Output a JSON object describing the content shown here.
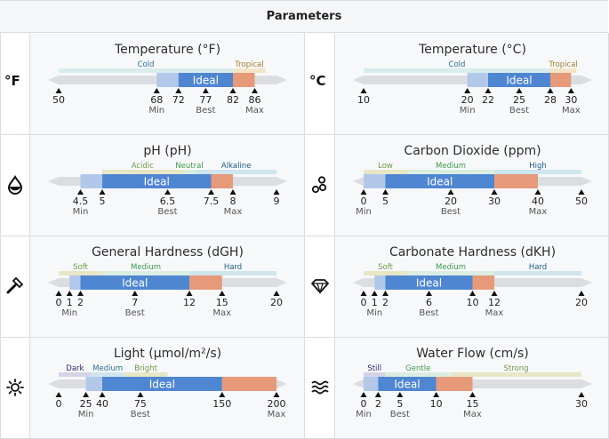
{
  "header": {
    "title": "Parameters"
  },
  "colors": {
    "ideal": "#4f86d1",
    "tolerance_low": "#b2c8ea",
    "tolerance_high": "#e69a7a",
    "track": "#dcdde0",
    "zone_a": "#d8ecec",
    "zone_b": "#e7e7c6",
    "zone_c": "#f4e4c7",
    "zone_d": "#d6d3e8",
    "zone_e": "#dbeee1",
    "zone_f": "#cfe6ee",
    "text_a": "#6f9a48",
    "text_b": "#1b5b86",
    "text_c": "#a27c2b",
    "text_d": "#2a286f",
    "text_e": "#3b9a4a",
    "text_f": "#2b6f8e"
  },
  "parameters": [
    {
      "key": "temp-f",
      "icon": "fahrenheit-icon",
      "icon_text": "°F",
      "title": "Temperature (°F)",
      "range": [
        50,
        90
      ],
      "zones": [
        {
          "label": "Cold",
          "from": 50,
          "to": 82,
          "fill": "#d8ecec",
          "text": "#2b6f8e"
        },
        {
          "label": "Tropical",
          "from": 82,
          "to": 88,
          "fill": "#f4e4c7",
          "text": "#a27c2b"
        }
      ],
      "min": 68,
      "low": 72,
      "best": 77,
      "high": 82,
      "max": 86,
      "ticks": [
        {
          "v": 50,
          "t": "50"
        },
        {
          "v": 68,
          "t": "68",
          "sub": "Min"
        },
        {
          "v": 72,
          "t": "72"
        },
        {
          "v": 77,
          "t": "77",
          "sub": "Best"
        },
        {
          "v": 82,
          "t": "82"
        },
        {
          "v": 86,
          "t": "86",
          "sub": "Max"
        }
      ],
      "ideal_label": "Ideal"
    },
    {
      "key": "temp-c",
      "icon": "celsius-icon",
      "icon_text": "°C",
      "title": "Temperature (°C)",
      "range": [
        10,
        31
      ],
      "zones": [
        {
          "label": "Cold",
          "from": 10,
          "to": 28,
          "fill": "#d8ecec",
          "text": "#2b6f8e"
        },
        {
          "label": "Tropical",
          "from": 28,
          "to": 30.5,
          "fill": "#f4e4c7",
          "text": "#a27c2b"
        }
      ],
      "min": 20,
      "low": 22,
      "best": 25,
      "high": 28,
      "max": 30,
      "ticks": [
        {
          "v": 10,
          "t": "10"
        },
        {
          "v": 20,
          "t": "20",
          "sub": "Min"
        },
        {
          "v": 22,
          "t": "22"
        },
        {
          "v": 25,
          "t": "25",
          "sub": "Best"
        },
        {
          "v": 28,
          "t": "28"
        },
        {
          "v": 30,
          "t": "30",
          "sub": "Max"
        }
      ],
      "ideal_label": "Ideal"
    },
    {
      "key": "ph",
      "icon": "water-drop-icon",
      "title": "pH (pH)",
      "range": [
        4,
        9
      ],
      "zones": [
        {
          "label": "Acidic",
          "from": 5,
          "to": 6.85,
          "fill": "#e7e7c6",
          "text": "#6f9a48"
        },
        {
          "label": "Neutral",
          "from": 6.85,
          "to": 7.15,
          "fill": "#dbeee1",
          "text": "#3b9a4a"
        },
        {
          "label": "Alkaline",
          "from": 7.15,
          "to": 9,
          "fill": "#cfe6ee",
          "text": "#1b5b86"
        }
      ],
      "min": 4.5,
      "low": 5,
      "best": 6.5,
      "high": 7.5,
      "max": 8,
      "ticks": [
        {
          "v": 4.5,
          "t": "4.5",
          "sub": "Min"
        },
        {
          "v": 5,
          "t": "5"
        },
        {
          "v": 6.5,
          "t": "6.5",
          "sub": "Best"
        },
        {
          "v": 7.5,
          "t": "7.5"
        },
        {
          "v": 8,
          "t": "8",
          "sub": "Max"
        },
        {
          "v": 9,
          "t": "9"
        }
      ],
      "ideal_label": "Ideal"
    },
    {
      "key": "co2",
      "icon": "bubbles-icon",
      "title": "Carbon Dioxide (ppm)",
      "range": [
        0,
        50
      ],
      "zones": [
        {
          "label": "Low",
          "from": 0,
          "to": 10,
          "fill": "#e7e7c6",
          "text": "#6f9a48"
        },
        {
          "label": "Medium",
          "from": 10,
          "to": 30,
          "fill": "#dbeee1",
          "text": "#3b9a4a"
        },
        {
          "label": "High",
          "from": 30,
          "to": 50,
          "fill": "#cfe6ee",
          "text": "#1b5b86"
        }
      ],
      "min": 0,
      "low": 5,
      "best": 20,
      "high": 30,
      "max": 40,
      "ticks": [
        {
          "v": 0,
          "t": "0",
          "sub": "Min"
        },
        {
          "v": 5,
          "t": "5"
        },
        {
          "v": 20,
          "t": "20",
          "sub": "Best"
        },
        {
          "v": 30,
          "t": "30"
        },
        {
          "v": 40,
          "t": "40",
          "sub": "Max"
        },
        {
          "v": 50,
          "t": "50"
        }
      ],
      "ideal_label": "Ideal"
    },
    {
      "key": "gh",
      "icon": "hammer-icon",
      "title": "General Hardness (dGH)",
      "range": [
        0,
        20
      ],
      "zones": [
        {
          "label": "Soft",
          "from": 0,
          "to": 4,
          "fill": "#e7e7c6",
          "text": "#6f9a48"
        },
        {
          "label": "Medium",
          "from": 4,
          "to": 12,
          "fill": "#dbeee1",
          "text": "#3b9a4a"
        },
        {
          "label": "Hard",
          "from": 12,
          "to": 20,
          "fill": "#cfe6ee",
          "text": "#1b5b86"
        }
      ],
      "min": 1,
      "low": 2,
      "best": 7,
      "high": 12,
      "max": 15,
      "ticks": [
        {
          "v": 0,
          "t": "0"
        },
        {
          "v": 1,
          "t": "1",
          "sub": "Min"
        },
        {
          "v": 2,
          "t": "2"
        },
        {
          "v": 7,
          "t": "7",
          "sub": "Best"
        },
        {
          "v": 12,
          "t": "12"
        },
        {
          "v": 15,
          "t": "15",
          "sub": "Max"
        },
        {
          "v": 20,
          "t": "20"
        }
      ],
      "ideal_label": "Ideal"
    },
    {
      "key": "kh",
      "icon": "gem-icon",
      "title": "Carbonate Hardness (dKH)",
      "range": [
        0,
        20
      ],
      "zones": [
        {
          "label": "Soft",
          "from": 0,
          "to": 4,
          "fill": "#e7e7c6",
          "text": "#6f9a48"
        },
        {
          "label": "Medium",
          "from": 4,
          "to": 12,
          "fill": "#dbeee1",
          "text": "#3b9a4a"
        },
        {
          "label": "Hard",
          "from": 12,
          "to": 20,
          "fill": "#cfe6ee",
          "text": "#1b5b86"
        }
      ],
      "min": 1,
      "low": 2,
      "best": 6,
      "high": 10,
      "max": 12,
      "ticks": [
        {
          "v": 0,
          "t": "0"
        },
        {
          "v": 1,
          "t": "1",
          "sub": "Min"
        },
        {
          "v": 2,
          "t": "2"
        },
        {
          "v": 6,
          "t": "6",
          "sub": "Best"
        },
        {
          "v": 10,
          "t": "10"
        },
        {
          "v": 12,
          "t": "12",
          "sub": "Max"
        },
        {
          "v": 20,
          "t": "20"
        }
      ],
      "ideal_label": "Ideal"
    },
    {
      "key": "light",
      "icon": "sun-icon",
      "title": "Light (µmol/m²/s)",
      "range": [
        0,
        200
      ],
      "zones": [
        {
          "label": "Dark",
          "from": 0,
          "to": 30,
          "fill": "#d6d3e8",
          "text": "#2a286f"
        },
        {
          "label": "Medium",
          "from": 30,
          "to": 60,
          "fill": "#cfe6ee",
          "text": "#2b6f8e"
        },
        {
          "label": "Bright",
          "from": 60,
          "to": 100,
          "fill": "#e7e7c6",
          "text": "#6f9a48"
        }
      ],
      "min": 25,
      "low": 40,
      "best": 75,
      "high": 150,
      "max": 200,
      "ticks": [
        {
          "v": 0,
          "t": "0"
        },
        {
          "v": 25,
          "t": "25",
          "sub": "Min"
        },
        {
          "v": 40,
          "t": "40"
        },
        {
          "v": 75,
          "t": "75",
          "sub": "Best"
        },
        {
          "v": 150,
          "t": "150"
        },
        {
          "v": 200,
          "t": "200",
          "sub": "Max"
        }
      ],
      "ideal_label": "Ideal"
    },
    {
      "key": "flow",
      "icon": "waves-icon",
      "title": "Water Flow (cm/s)",
      "range": [
        0,
        30
      ],
      "zones": [
        {
          "label": "Still",
          "from": 0,
          "to": 3,
          "fill": "#d6d3e8",
          "text": "#2a286f"
        },
        {
          "label": "Gentle",
          "from": 3,
          "to": 12,
          "fill": "#dbeee1",
          "text": "#3b9a4a"
        },
        {
          "label": "Strong",
          "from": 12,
          "to": 30,
          "fill": "#e7e7c6",
          "text": "#6f9a48"
        }
      ],
      "min": 0,
      "low": 2,
      "best": 5,
      "high": 10,
      "max": 15,
      "ticks": [
        {
          "v": 0,
          "t": "0",
          "sub": "Min"
        },
        {
          "v": 2,
          "t": "2"
        },
        {
          "v": 5,
          "t": "5",
          "sub": "Best"
        },
        {
          "v": 10,
          "t": "10"
        },
        {
          "v": 15,
          "t": "15",
          "sub": "Max"
        },
        {
          "v": 30,
          "t": "30"
        }
      ],
      "ideal_label": "Ideal"
    }
  ]
}
